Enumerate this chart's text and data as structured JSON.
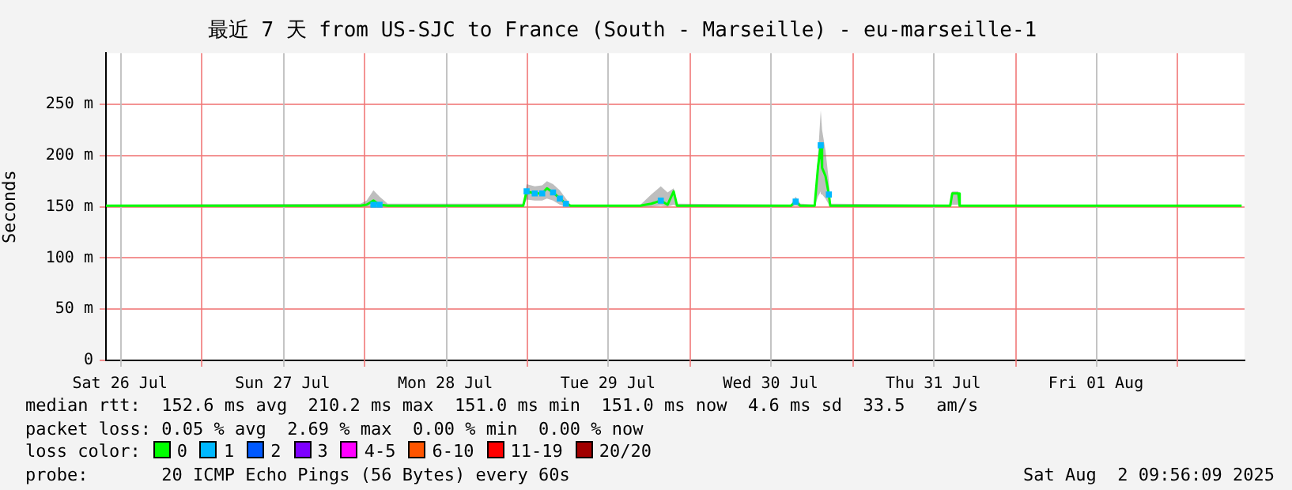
{
  "chart_data": {
    "type": "line",
    "title": "最近 7 天 from US-SJC to France (South - Marseille) - eu-marseille-1",
    "ylabel": "Seconds",
    "legend_title": "loss color:",
    "xlim": [
      "2025-07-26T09:56",
      "2025-08-02T09:56"
    ],
    "xticks": [
      {
        "value": "2025-07-26T12:00",
        "label": "Sat 26 Jul"
      },
      {
        "value": "2025-07-27T00:00",
        "label": null
      },
      {
        "value": "2025-07-27T12:00",
        "label": "Sun 27 Jul"
      },
      {
        "value": "2025-07-28T00:00",
        "label": null
      },
      {
        "value": "2025-07-28T12:00",
        "label": "Mon 28 Jul"
      },
      {
        "value": "2025-07-29T00:00",
        "label": null
      },
      {
        "value": "2025-07-29T12:00",
        "label": "Tue 29 Jul"
      },
      {
        "value": "2025-07-30T00:00",
        "label": null
      },
      {
        "value": "2025-07-30T12:00",
        "label": "Wed 30 Jul"
      },
      {
        "value": "2025-07-31T00:00",
        "label": null
      },
      {
        "value": "2025-07-31T12:00",
        "label": "Thu 31 Jul"
      },
      {
        "value": "2025-08-01T00:00",
        "label": null
      },
      {
        "value": "2025-08-01T12:00",
        "label": "Fri 01 Aug"
      },
      {
        "value": "2025-08-02T00:00",
        "label": null
      }
    ],
    "ylim": [
      0,
      300
    ],
    "yticks": [
      {
        "value": 0,
        "label": "0"
      },
      {
        "value": 50,
        "label": "50 m"
      },
      {
        "value": 100,
        "label": "100 m"
      },
      {
        "value": 150,
        "label": "150 m"
      },
      {
        "value": 200,
        "label": "200 m"
      },
      {
        "value": 250,
        "label": "250 m"
      }
    ],
    "grid": true,
    "legend": "bottom",
    "series": [
      {
        "name": "0",
        "color": "#00ff00",
        "x": [
          "2025-07-26T09:56",
          "2025-07-27T23:30",
          "2025-07-28T00:24",
          "2025-07-28T01:24",
          "2025-07-28T02:18",
          "2025-07-28T03:30",
          "2025-07-28T23:30",
          "2025-07-29T00:00",
          "2025-07-29T01:12",
          "2025-07-29T02:18",
          "2025-07-29T03:00",
          "2025-07-29T03:54",
          "2025-07-29T04:54",
          "2025-07-29T05:48",
          "2025-07-29T06:30",
          "2025-07-29T16:48",
          "2025-07-29T18:24",
          "2025-07-29T19:48",
          "2025-07-29T20:48",
          "2025-07-29T21:42",
          "2025-07-29T22:12",
          "2025-07-30T15:00",
          "2025-07-30T15:42",
          "2025-07-30T16:24",
          "2025-07-30T18:30",
          "2025-07-30T19:00",
          "2025-07-30T19:24",
          "2025-07-30T19:36",
          "2025-07-30T20:06",
          "2025-07-30T20:36",
          "2025-07-30T20:48",
          "2025-07-31T14:30",
          "2025-07-31T14:48",
          "2025-07-31T15:42",
          "2025-07-31T15:54",
          "2025-08-02T09:30"
        ],
        "values": [
          151,
          151,
          152,
          156,
          152,
          151,
          151,
          165,
          163,
          163,
          168,
          164,
          158,
          153,
          151,
          151,
          153,
          156,
          152,
          165,
          151,
          151,
          155,
          151,
          151,
          189,
          210,
          188,
          180,
          162,
          151,
          151,
          163,
          163,
          151,
          151
        ],
        "lower": [
          150,
          150,
          150,
          150,
          150,
          150,
          150,
          157,
          156,
          156,
          158,
          156,
          152,
          150,
          150,
          150,
          150,
          151,
          150,
          152,
          150,
          150,
          151,
          150,
          150,
          160,
          165,
          162,
          158,
          152,
          150,
          150,
          152,
          152,
          150,
          150
        ],
        "upper": [
          152,
          153,
          156,
          166,
          160,
          153,
          153,
          172,
          170,
          171,
          175,
          172,
          166,
          158,
          152,
          152,
          162,
          170,
          164,
          168,
          153,
          152,
          160,
          153,
          152,
          200,
          244,
          225,
          205,
          175,
          153,
          152,
          165,
          165,
          152,
          152
        ]
      },
      {
        "name": "1",
        "color": "#00b8ff",
        "type": "scatter",
        "marker": "square",
        "x": [
          "2025-07-28T01:24",
          "2025-07-28T02:18",
          "2025-07-29T00:00",
          "2025-07-29T01:12",
          "2025-07-29T02:18",
          "2025-07-29T03:54",
          "2025-07-29T04:54",
          "2025-07-29T05:48",
          "2025-07-29T19:48",
          "2025-07-30T15:42",
          "2025-07-30T19:24",
          "2025-07-30T20:36"
        ],
        "values": [
          152,
          152,
          165,
          163,
          163,
          164,
          158,
          153,
          156,
          155,
          210,
          162
        ]
      },
      {
        "name": "2",
        "color": "#0059ff",
        "type": "scatter"
      },
      {
        "name": "3",
        "color": "#7e00ff",
        "type": "scatter"
      },
      {
        "name": "4-5",
        "color": "#ff00ff",
        "type": "scatter"
      },
      {
        "name": "6-10",
        "color": "#ff5500",
        "type": "scatter"
      },
      {
        "name": "11-19",
        "color": "#ff0000",
        "type": "scatter"
      },
      {
        "name": "20/20",
        "color": "#a10000",
        "type": "scatter"
      }
    ],
    "annotations": [
      "median rtt:  152.6 ms avg  210.2 ms max  151.0 ms min  151.0 ms now  4.6 ms sd  33.5   am/s",
      "packet loss: 0.05 % avg  2.69 % max  0.00 % min  0.00 % now",
      "probe:       20 ICMP Echo Pings (56 Bytes) every 60s",
      "Sat Aug  2 09:56:09 2025"
    ]
  }
}
